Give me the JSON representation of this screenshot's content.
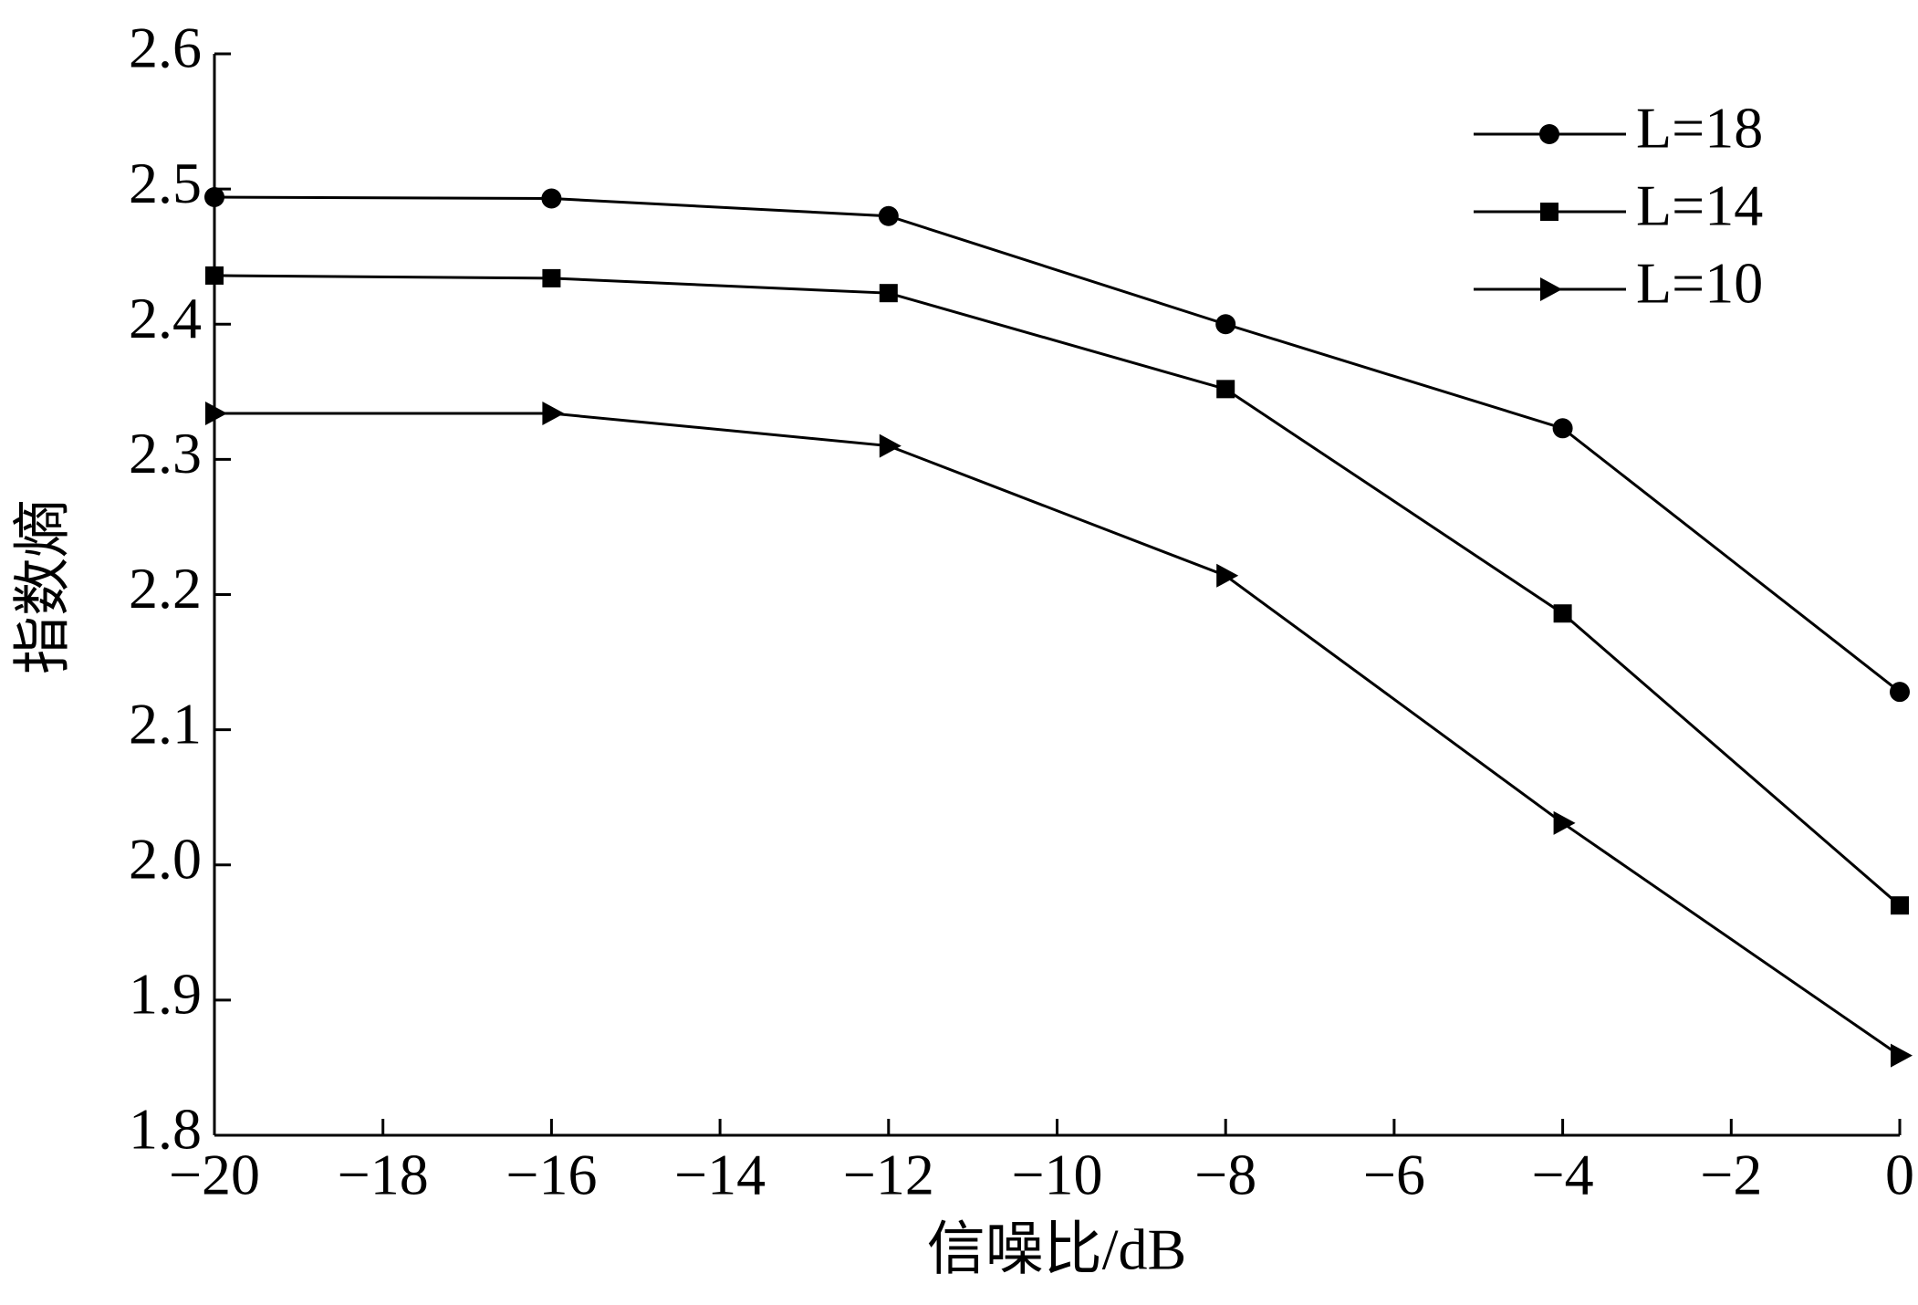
{
  "chart_data": {
    "type": "line",
    "xlabel": "信噪比/dB",
    "ylabel": "指数熵",
    "x": [
      -20,
      -16,
      -12,
      -8,
      -4,
      0
    ],
    "series": [
      {
        "name": "L=18",
        "color": "#000000",
        "marker": "circle",
        "values": [
          2.494,
          2.493,
          2.48,
          2.4,
          2.323,
          2.128
        ]
      },
      {
        "name": "L=14",
        "color": "#000000",
        "marker": "square",
        "values": [
          2.436,
          2.434,
          2.423,
          2.352,
          2.186,
          1.97
        ]
      },
      {
        "name": "L=10",
        "color": "#000000",
        "marker": "triangle-right",
        "values": [
          2.334,
          2.334,
          2.31,
          2.214,
          2.031,
          1.859
        ]
      }
    ],
    "xlim": [
      -20,
      0
    ],
    "xticks": [
      {
        "value": -20,
        "label": "−20"
      },
      {
        "value": -18,
        "label": "−18"
      },
      {
        "value": -16,
        "label": "−16"
      },
      {
        "value": -14,
        "label": "−14"
      },
      {
        "value": -12,
        "label": "−12"
      },
      {
        "value": -10,
        "label": "−10"
      },
      {
        "value": -8,
        "label": "−8"
      },
      {
        "value": -6,
        "label": "−6"
      },
      {
        "value": -4,
        "label": "−4"
      },
      {
        "value": -2,
        "label": "−2"
      },
      0
    ],
    "ylim": [
      1.8,
      2.6
    ],
    "yticks": [
      1.8,
      1.9,
      {
        "value": 2,
        "label": "2.0"
      },
      2.1,
      2.2,
      2.3,
      2.4,
      2.5,
      2.6
    ],
    "legend": "upper-right",
    "grid": false
  }
}
